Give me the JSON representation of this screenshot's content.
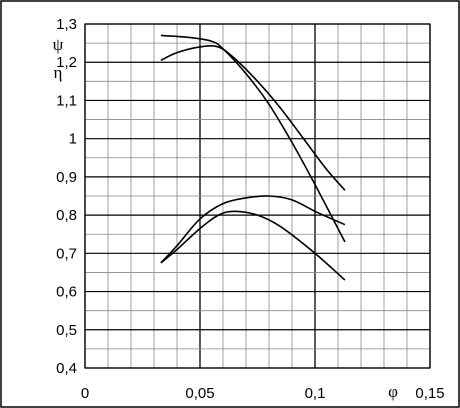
{
  "chart_data": {
    "type": "line",
    "title": "",
    "xlabel": "φ",
    "ylabels": [
      "ψ",
      "η"
    ],
    "xlim": [
      0,
      0.15
    ],
    "ylim": [
      0.4,
      1.3
    ],
    "xticks": [
      "0",
      "0,05",
      "0,1",
      "0,15"
    ],
    "yticks": [
      "0,4",
      "0,5",
      "0,6",
      "0,7",
      "0,8",
      "0,9",
      "1",
      "1,1",
      "1,2",
      "1,3"
    ],
    "grid": true,
    "legend": "none",
    "line_color": "#000000",
    "series": [
      {
        "x": [
          0.033,
          0.045,
          0.055,
          0.06,
          0.07,
          0.08,
          0.09,
          0.1,
          0.113
        ],
        "y": [
          1.27,
          1.265,
          1.255,
          1.235,
          1.17,
          1.09,
          0.99,
          0.88,
          0.73
        ]
      },
      {
        "x": [
          0.033,
          0.04,
          0.05,
          0.058,
          0.065,
          0.075,
          0.085,
          0.095,
          0.105,
          0.113
        ],
        "y": [
          1.205,
          1.225,
          1.24,
          1.24,
          1.21,
          1.15,
          1.08,
          1.0,
          0.92,
          0.865
        ]
      },
      {
        "x": [
          0.033,
          0.04,
          0.05,
          0.06,
          0.07,
          0.08,
          0.09,
          0.1,
          0.113
        ],
        "y": [
          0.675,
          0.72,
          0.79,
          0.83,
          0.845,
          0.85,
          0.84,
          0.81,
          0.775
        ]
      },
      {
        "x": [
          0.033,
          0.04,
          0.05,
          0.058,
          0.065,
          0.075,
          0.085,
          0.1,
          0.113
        ],
        "y": [
          0.675,
          0.71,
          0.765,
          0.8,
          0.81,
          0.8,
          0.77,
          0.7,
          0.63
        ]
      }
    ]
  }
}
